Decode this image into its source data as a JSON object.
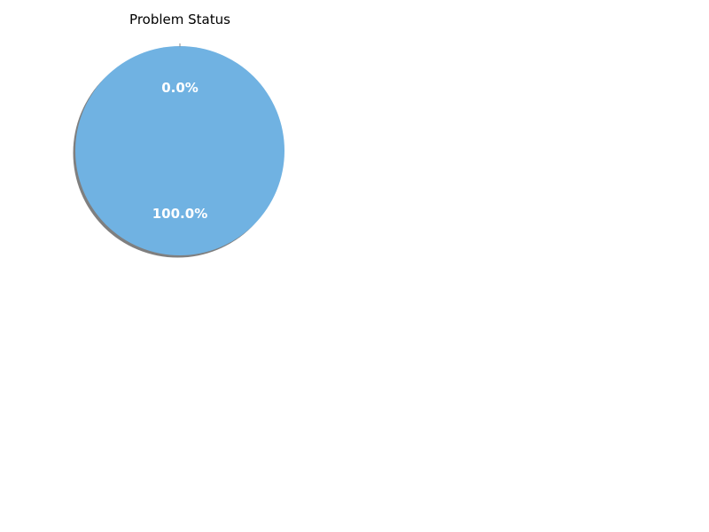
{
  "chart_data": {
    "type": "pie",
    "title": "Problem Status",
    "categories": [
      "",
      ""
    ],
    "values": [
      0.0,
      100.0
    ],
    "labels": [
      "0.0%",
      "100.0%"
    ],
    "colors": [
      "#e74c3c",
      "#70b2e2"
    ],
    "start_angle_deg": 90,
    "shadow": true
  }
}
